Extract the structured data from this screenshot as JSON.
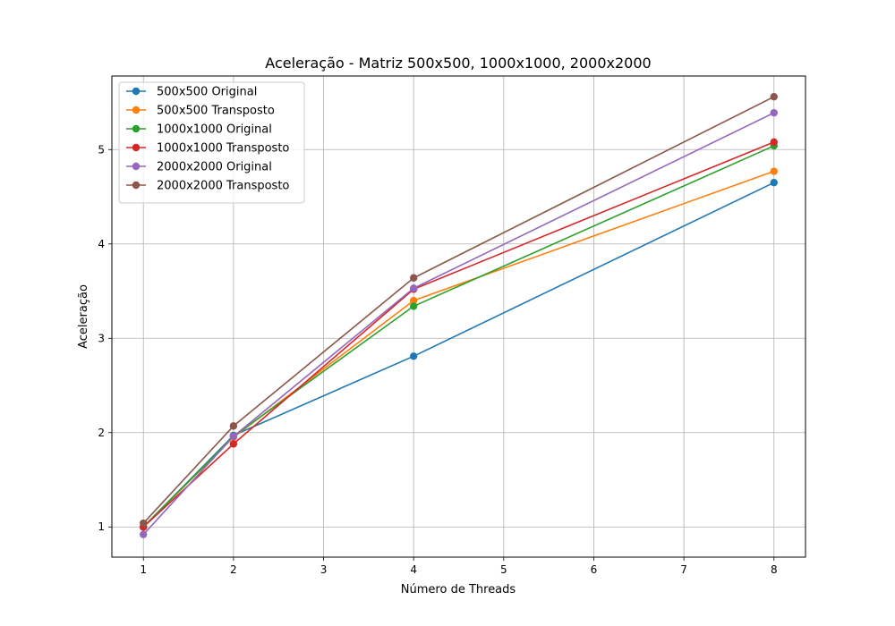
{
  "chart_data": {
    "type": "line",
    "title": "Aceleração - Matriz 500x500, 1000x1000, 2000x2000",
    "xlabel": "Número de Threads",
    "ylabel": "Aceleração",
    "xlim": [
      0.65,
      8.35
    ],
    "ylim": [
      0.68,
      5.78
    ],
    "x_ticks": [
      1,
      2,
      3,
      4,
      5,
      6,
      7,
      8
    ],
    "y_ticks": [
      1,
      2,
      3,
      4,
      5
    ],
    "x_tick_labels": [
      "1",
      "2",
      "3",
      "4",
      "5",
      "6",
      "7",
      "8"
    ],
    "y_tick_labels": [
      "1",
      "2",
      "3",
      "4",
      "5"
    ],
    "grid": true,
    "legend_position": "top-left",
    "x": [
      1,
      2,
      4,
      8
    ],
    "series": [
      {
        "name": "500x500 Original",
        "color": "#1f77b4",
        "values": [
          1.0,
          1.97,
          2.81,
          4.65
        ]
      },
      {
        "name": "500x500 Transposto",
        "color": "#ff7f0e",
        "values": [
          1.0,
          1.95,
          3.4,
          4.77
        ]
      },
      {
        "name": "1000x1000 Original",
        "color": "#2ca02c",
        "values": [
          1.0,
          1.96,
          3.34,
          5.04
        ]
      },
      {
        "name": "1000x1000 Transposto",
        "color": "#d62728",
        "values": [
          1.0,
          1.88,
          3.52,
          5.08
        ]
      },
      {
        "name": "2000x2000 Original",
        "color": "#9467bd",
        "values": [
          0.92,
          1.96,
          3.53,
          5.39
        ]
      },
      {
        "name": "2000x2000 Transposto",
        "color": "#8c564b",
        "values": [
          1.04,
          2.07,
          3.64,
          5.56
        ]
      }
    ]
  }
}
